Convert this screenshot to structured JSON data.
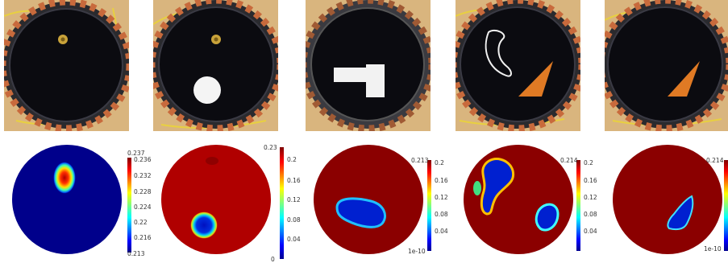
{
  "photos": [
    {
      "name": "photo-empty-tank-with-probe"
    },
    {
      "name": "photo-tank-white-disk"
    },
    {
      "name": "photo-tank-white-l-block"
    },
    {
      "name": "photo-tank-crescent-and-triangle"
    },
    {
      "name": "photo-tank-orange-triangle"
    }
  ],
  "reconstructions": [
    {
      "scale_top": "0.237",
      "scale_bottom": "0.213",
      "ticks": [
        "0.236",
        "0.232",
        "0.228",
        "0.224",
        "0.22",
        "0.216"
      ]
    },
    {
      "scale_top": "0.23",
      "scale_bottom": "0",
      "ticks": [
        "0.2",
        "0.16",
        "0.12",
        "0.08",
        "0.04"
      ]
    },
    {
      "scale_top": "0.213",
      "scale_bottom": "1e-10",
      "ticks": [
        "0.2",
        "0.16",
        "0.12",
        "0.08",
        "0.04"
      ]
    },
    {
      "scale_top": "0.214",
      "scale_bottom": "",
      "ticks": [
        "0.2",
        "0.16",
        "0.12",
        "0.08",
        "0.04"
      ]
    },
    {
      "scale_top": "0.214",
      "scale_bottom": "1e-10",
      "ticks": []
    }
  ],
  "colors": {
    "tank_black": "#0b0b10",
    "wood": "#d9b57e",
    "electrode_orange": "#c86a3c",
    "recon_red": "#8b0000",
    "recon_blue": "#00008b",
    "white_object": "#f4f4f4",
    "orange_triangle": "#e07a24"
  }
}
